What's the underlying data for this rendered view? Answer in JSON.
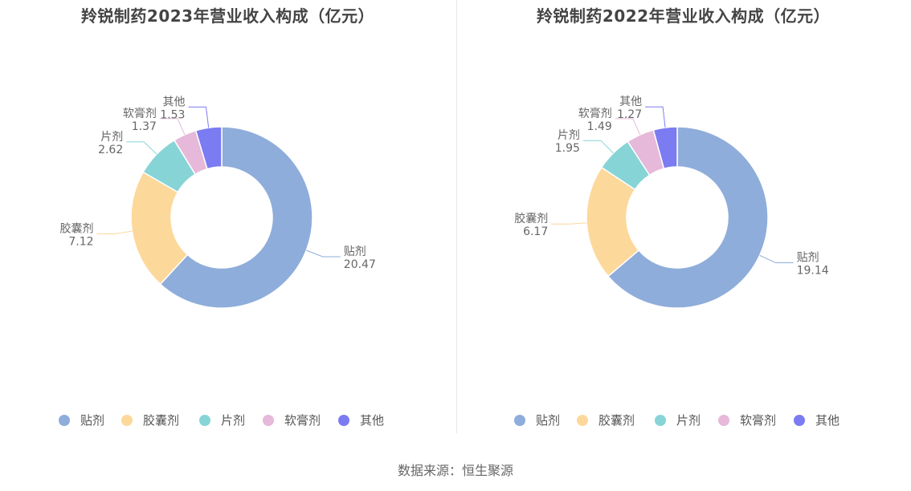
{
  "source": "数据来源：恒生聚源",
  "chart_data": [
    {
      "type": "pie",
      "variant": "donut",
      "title": "羚锐制药2023年营业收入构成（亿元）",
      "categories": [
        "贴剂",
        "胶囊剂",
        "片剂",
        "软膏剂",
        "其他"
      ],
      "values": [
        20.47,
        7.12,
        2.62,
        1.37,
        1.53
      ],
      "value_labels": [
        "20.47",
        "7.12",
        "2.62",
        "1.37",
        "1.53"
      ],
      "colors": [
        "#8eadda",
        "#fdd89b",
        "#87d4d6",
        "#e6b8d9",
        "#7b7bf2"
      ],
      "legend": "bottom"
    },
    {
      "type": "pie",
      "variant": "donut",
      "title": "羚锐制药2022年营业收入构成（亿元）",
      "categories": [
        "贴剂",
        "胶囊剂",
        "片剂",
        "软膏剂",
        "其他"
      ],
      "values": [
        19.14,
        6.17,
        1.95,
        1.49,
        1.27
      ],
      "value_labels": [
        "19.14",
        "6.17",
        "1.95",
        "1.49",
        "1.27"
      ],
      "colors": [
        "#8eadda",
        "#fdd89b",
        "#87d4d6",
        "#e6b8d9",
        "#7b7bf2"
      ],
      "legend": "bottom"
    }
  ]
}
